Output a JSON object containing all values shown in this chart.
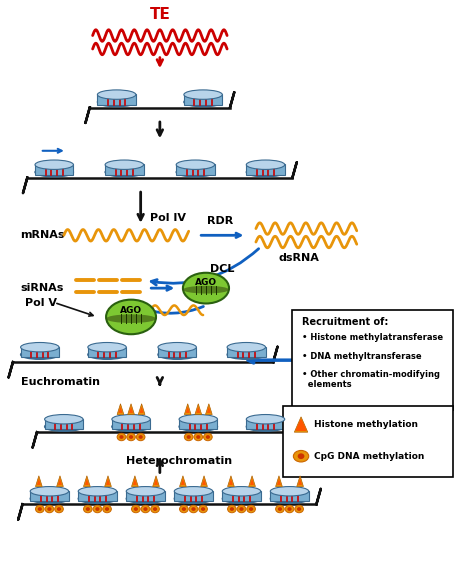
{
  "bg_color": "#ffffff",
  "nuc_top_color": "#b8d4ea",
  "nuc_side_color": "#7aaed0",
  "nuc_dark_edge": "#3a6a90",
  "dna_wrap_color": "#cc0000",
  "dna_line_color": "#111111",
  "te_color": "#cc0000",
  "mrna_color": "#e8950a",
  "ago_fill": "#7dc832",
  "ago_edge": "#2a6010",
  "ago_band": "#3a5010",
  "blue_arrow": "#1060c0",
  "black_arrow": "#111111",
  "red_arrow": "#cc0000",
  "te_label": "TE",
  "pol4_label": "Pol IV",
  "rdr_label": "RDR",
  "dcl_label": "DCL",
  "dsrna_label": "dsRNA",
  "mrnas_label": "mRNAs",
  "sirnas_label": "siRNAs",
  "polv_label": "Pol V",
  "euchromatin_label": "Euchromatin",
  "heterochromatin_label": "Heterochromatin",
  "ago_label": "AGO",
  "box1_title": "Recruitment of:",
  "box1_items": [
    "Histone methylatransferase",
    "DNA methyltransferase",
    "Other chromatin-modifying",
    "  elements"
  ],
  "box2_item1": "Histone methylation",
  "box2_item2": "CpG DNA methylation",
  "tri_color": "#e8950a",
  "tri_edge": "#b06000",
  "cpg_color": "#e8950a",
  "cpg_inner": "#cc6600"
}
